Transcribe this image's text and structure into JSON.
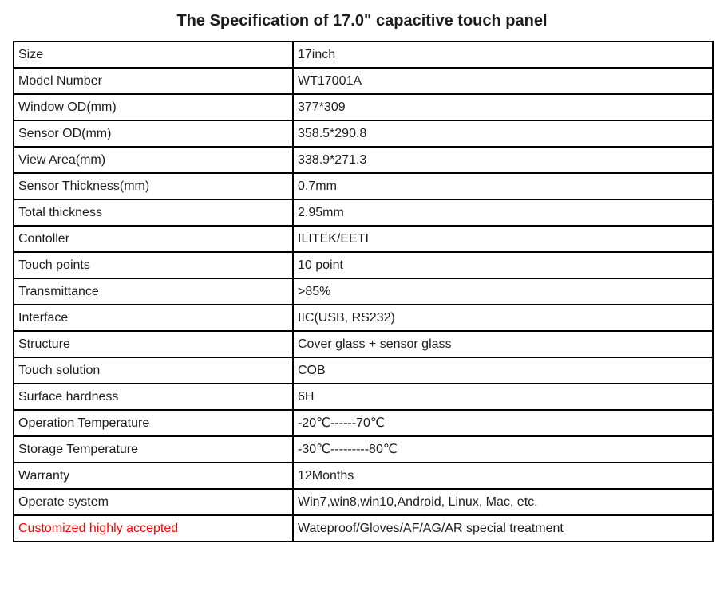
{
  "title": "The Specification of 17.0\" capacitive touch panel",
  "colors": {
    "text": "#1d1d1d",
    "border": "#000000",
    "highlight_red": "#ff0000",
    "background": "#ffffff"
  },
  "table": {
    "rows": [
      {
        "label": "Size",
        "value": "17inch"
      },
      {
        "label": "Model Number",
        "value": "WT17001A"
      },
      {
        "label": "Window OD(mm)",
        "value": "377*309"
      },
      {
        "label": "Sensor OD(mm)",
        "value": "358.5*290.8"
      },
      {
        "label": "View Area(mm)",
        "value": "338.9*271.3"
      },
      {
        "label": "Sensor Thickness(mm)",
        "value": "0.7mm"
      },
      {
        "label": "Total thickness",
        "value": "2.95mm"
      },
      {
        "label": "Contoller",
        "value": "ILITEK/EETI"
      },
      {
        "label": "Touch points",
        "value": "10 point"
      },
      {
        "label": "Transmittance",
        "value": ">85%"
      },
      {
        "label": "Interface",
        "value": "IIC(USB, RS232)"
      },
      {
        "label": "Structure",
        "value": "Cover glass + sensor glass"
      },
      {
        "label": "Touch solution",
        "value": "COB"
      },
      {
        "label": "Surface hardness",
        "value": "6H"
      },
      {
        "label": "Operation Temperature",
        "value": "-20℃------70℃"
      },
      {
        "label": "Storage Temperature",
        "value": "-30℃---------80℃"
      },
      {
        "label": "Warranty",
        "value": "12Months"
      },
      {
        "label": "Operate system",
        "value": "Win7,win8,win10,Android, Linux, Mac, etc."
      },
      {
        "label": "Customized highly accepted",
        "value": "Wateproof/Gloves/AF/AG/AR special treatment",
        "label_color": "#ff0000"
      }
    ]
  }
}
